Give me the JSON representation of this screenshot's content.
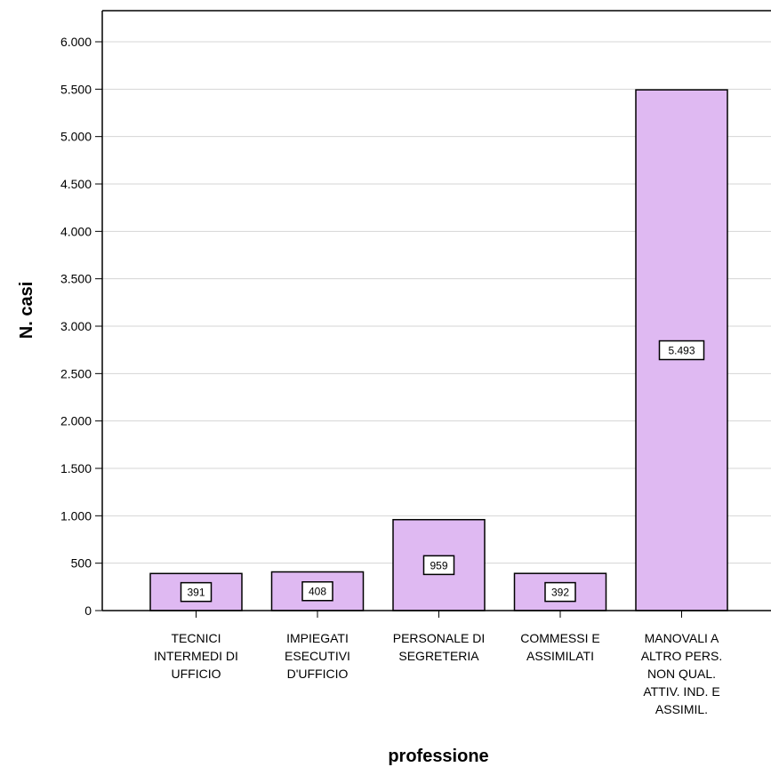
{
  "chart_data": {
    "type": "bar",
    "xlabel": "professione",
    "ylabel": "N. casi",
    "ylim": [
      0,
      6000
    ],
    "yticks": [
      0,
      500,
      1000,
      1500,
      2000,
      2500,
      3000,
      3500,
      4000,
      4500,
      5000,
      5500,
      6000
    ],
    "ytick_labels": [
      "0",
      "500",
      "1.000",
      "1.500",
      "2.000",
      "2.500",
      "3.000",
      "3.500",
      "4.000",
      "4.500",
      "5.000",
      "5.500",
      "6.000"
    ],
    "categories": [
      [
        "TECNICI",
        "INTERMEDI DI",
        "UFFICIO"
      ],
      [
        "IMPIEGATI",
        "ESECUTIVI",
        "D'UFFICIO"
      ],
      [
        "PERSONALE DI",
        "SEGRETERIA"
      ],
      [
        "COMMESSI E",
        "ASSIMILATI"
      ],
      [
        "MANOVALI A",
        "ALTRO PERS.",
        "NON QUAL.",
        "ATTIV. IND. E",
        "ASSIMIL."
      ]
    ],
    "values": [
      391,
      408,
      959,
      392,
      5493
    ],
    "data_labels": [
      "391",
      "408",
      "959",
      "392",
      "5.493"
    ],
    "bar_color": "#dfb9f2",
    "grid": true
  }
}
